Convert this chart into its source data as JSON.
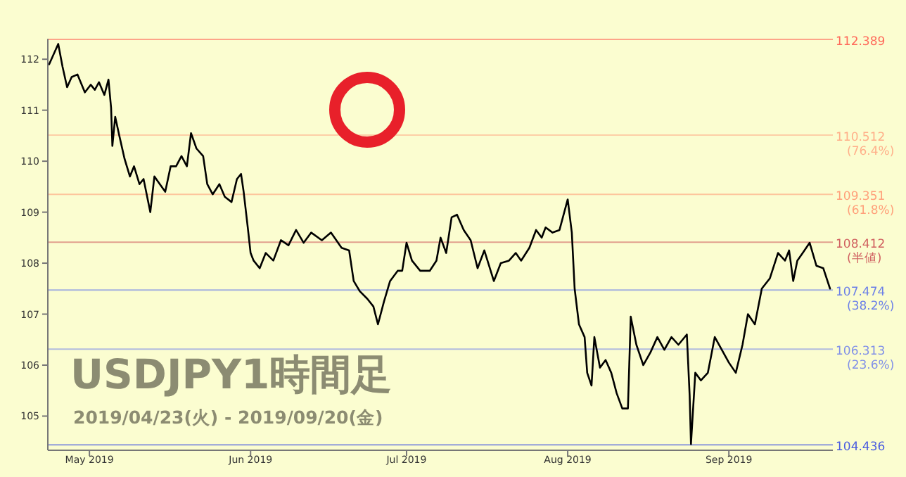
{
  "chart_data": {
    "type": "line",
    "title": "USDJPY1時間足",
    "subtitle": "2019/04/23(火) - 2019/09/20(金)",
    "xlim": [
      "2019-04-23T00:00",
      "2019-09-21T00:00"
    ],
    "xticks": [
      {
        "value": "2019-05-01",
        "label": "May 2019"
      },
      {
        "value": "2019-06-01",
        "label": "Jun 2019"
      },
      {
        "value": "2019-07-01",
        "label": "Jul 2019"
      },
      {
        "value": "2019-08-01",
        "label": "Aug 2019"
      },
      {
        "value": "2019-09-01",
        "label": "Sep 2019"
      }
    ],
    "ylim": [
      104.33,
      112.4
    ],
    "yticks": [
      105,
      106,
      107,
      108,
      109,
      110,
      111,
      112
    ],
    "grid": false,
    "marker": "none",
    "line_style": "solid",
    "series": [
      {
        "color": "#000000",
        "x": [
          "2019-04-23T06:00",
          "2019-04-25T00:00",
          "2019-04-25T20:00",
          "2019-04-26T17:00",
          "2019-04-27T14:00",
          "2019-04-28T17:00",
          "2019-04-30T03:00",
          "2019-05-01T06:00",
          "2019-05-02T01:00",
          "2019-05-02T20:00",
          "2019-05-03T21:00",
          "2019-05-04T16:00",
          "2019-05-05T04:00",
          "2019-05-05T10:00",
          "2019-05-05T23:00",
          "2019-05-06T18:00",
          "2019-05-07T18:00",
          "2019-05-08T19:00",
          "2019-05-09T14:00",
          "2019-05-10T15:00",
          "2019-05-11T10:00",
          "2019-05-12T17:00",
          "2019-05-13T12:00",
          "2019-05-14T13:00",
          "2019-05-15T14:00",
          "2019-05-16T15:00",
          "2019-05-17T16:00",
          "2019-05-18T17:00",
          "2019-05-19T18:00",
          "2019-05-20T13:00",
          "2019-05-21T14:00",
          "2019-05-22T21:00",
          "2019-05-23T16:00",
          "2019-05-24T17:00",
          "2019-05-26T00:00",
          "2019-05-27T01:00",
          "2019-05-28T08:00",
          "2019-05-29T09:00",
          "2019-05-30T04:00",
          "2019-05-30T16:00",
          "2019-05-31T11:00",
          "2019-06-01T00:00",
          "2019-06-01T14:00",
          "2019-06-02T18:00",
          "2019-06-03T22:00",
          "2019-06-05T09:00",
          "2019-06-06T20:00",
          "2019-06-08T07:00",
          "2019-06-09T18:00",
          "2019-06-11T05:00",
          "2019-06-12T16:00",
          "2019-06-14T17:00",
          "2019-06-16T11:00",
          "2019-06-18T12:00",
          "2019-06-19T23:00",
          "2019-06-20T20:00",
          "2019-06-22T00:00",
          "2019-06-23T11:00",
          "2019-06-24T15:00",
          "2019-06-25T12:00",
          "2019-06-26T16:00",
          "2019-06-27T20:00",
          "2019-06-29T07:00",
          "2019-06-30T04:00",
          "2019-07-01T00:00",
          "2019-07-02T01:00",
          "2019-07-03T15:00",
          "2019-07-05T11:00",
          "2019-07-06T18:00",
          "2019-07-07T13:00",
          "2019-07-08T15:00",
          "2019-07-09T16:00",
          "2019-07-10T17:00",
          "2019-07-12T00:00",
          "2019-07-13T08:00",
          "2019-07-14T16:00",
          "2019-07-15T23:00",
          "2019-07-17T19:00",
          "2019-07-19T03:00",
          "2019-07-20T17:00",
          "2019-07-22T00:00",
          "2019-07-23T01:00",
          "2019-07-24T15:00",
          "2019-07-25T22:00",
          "2019-07-27T00:00",
          "2019-07-27T18:00",
          "2019-07-29T02:00",
          "2019-07-30T10:00",
          "2019-08-01T00:00",
          "2019-08-01T19:00",
          "2019-08-02T08:00",
          "2019-08-03T04:00",
          "2019-08-04T06:00",
          "2019-08-04T18:00",
          "2019-08-05T14:00",
          "2019-08-06T03:00",
          "2019-08-07T05:00",
          "2019-08-08T07:00",
          "2019-08-09T09:00",
          "2019-08-10T10:00",
          "2019-08-11T12:00",
          "2019-08-12T14:00",
          "2019-08-13T03:00",
          "2019-08-14T05:00",
          "2019-08-15T13:00",
          "2019-08-16T22:00",
          "2019-08-18T06:00",
          "2019-08-19T14:00",
          "2019-08-20T23:00",
          "2019-08-22T07:00",
          "2019-08-23T22:00",
          "2019-08-24T11:00",
          "2019-08-24T17:00",
          "2019-08-25T13:00",
          "2019-08-26T15:00",
          "2019-08-27T23:00",
          "2019-08-29T07:00",
          "2019-08-30T22:00",
          "2019-09-01T00:00",
          "2019-09-02T08:00",
          "2019-09-03T15:00",
          "2019-09-04T16:00",
          "2019-09-06T00:00",
          "2019-09-07T08:00",
          "2019-09-08T21:00",
          "2019-09-10T11:00",
          "2019-09-11T19:00",
          "2019-09-12T14:00",
          "2019-09-13T09:00",
          "2019-09-14T04:00",
          "2019-09-15T05:00",
          "2019-09-16T13:00",
          "2019-09-17T20:00",
          "2019-09-19T04:00",
          "2019-09-20T11:00"
        ],
        "values": [
          111.9,
          112.3,
          111.85,
          111.45,
          111.65,
          111.7,
          111.35,
          111.5,
          111.4,
          111.55,
          111.3,
          111.6,
          111.05,
          110.3,
          110.87,
          110.5,
          110.05,
          109.7,
          109.9,
          109.55,
          109.65,
          109.0,
          109.7,
          109.55,
          109.4,
          109.9,
          109.9,
          110.1,
          109.9,
          110.55,
          110.25,
          110.1,
          109.55,
          109.35,
          109.55,
          109.3,
          109.2,
          109.65,
          109.75,
          109.4,
          108.7,
          108.2,
          108.05,
          107.9,
          108.2,
          108.05,
          108.45,
          108.35,
          108.65,
          108.4,
          108.6,
          108.45,
          108.6,
          108.3,
          108.25,
          107.65,
          107.45,
          107.3,
          107.15,
          106.8,
          107.25,
          107.65,
          107.85,
          107.85,
          108.4,
          108.05,
          107.85,
          107.85,
          108.05,
          108.5,
          108.2,
          108.9,
          108.95,
          108.65,
          108.45,
          107.9,
          108.25,
          107.65,
          108.0,
          108.05,
          108.2,
          108.05,
          108.3,
          108.65,
          108.5,
          108.7,
          108.6,
          108.65,
          109.25,
          108.6,
          107.5,
          106.8,
          106.55,
          105.85,
          105.6,
          106.55,
          105.95,
          106.1,
          105.85,
          105.45,
          105.15,
          105.15,
          106.95,
          106.4,
          106.0,
          106.25,
          106.55,
          106.3,
          106.55,
          106.4,
          106.6,
          105.4,
          104.45,
          105.85,
          105.7,
          105.85,
          106.55,
          106.25,
          106.05,
          105.85,
          106.4,
          107.0,
          106.8,
          107.5,
          107.7,
          108.2,
          108.05,
          108.25,
          107.65,
          108.05,
          108.2,
          108.4,
          107.95,
          107.9,
          107.5
        ]
      }
    ],
    "ref_lines": [
      {
        "axis": "y",
        "value": 112.389,
        "label": "112.389",
        "color": "#ff6a5a"
      },
      {
        "axis": "y",
        "value": 110.512,
        "label": "110.512\n(76.4%)",
        "color": "#ffb08a"
      },
      {
        "axis": "y",
        "value": 109.351,
        "label": "109.351\n(61.8%)",
        "color": "#ffa07a"
      },
      {
        "axis": "y",
        "value": 108.412,
        "label": "108.412\n(半値)",
        "color": "#d06060"
      },
      {
        "axis": "y",
        "value": 107.474,
        "label": "107.474\n(38.2%)",
        "color": "#6b7fe8"
      },
      {
        "axis": "y",
        "value": 106.313,
        "label": "106.313\n(23.6%)",
        "color": "#8090e8"
      },
      {
        "axis": "y",
        "value": 104.436,
        "label": "104.436",
        "color": "#4a5ce0"
      }
    ]
  }
}
